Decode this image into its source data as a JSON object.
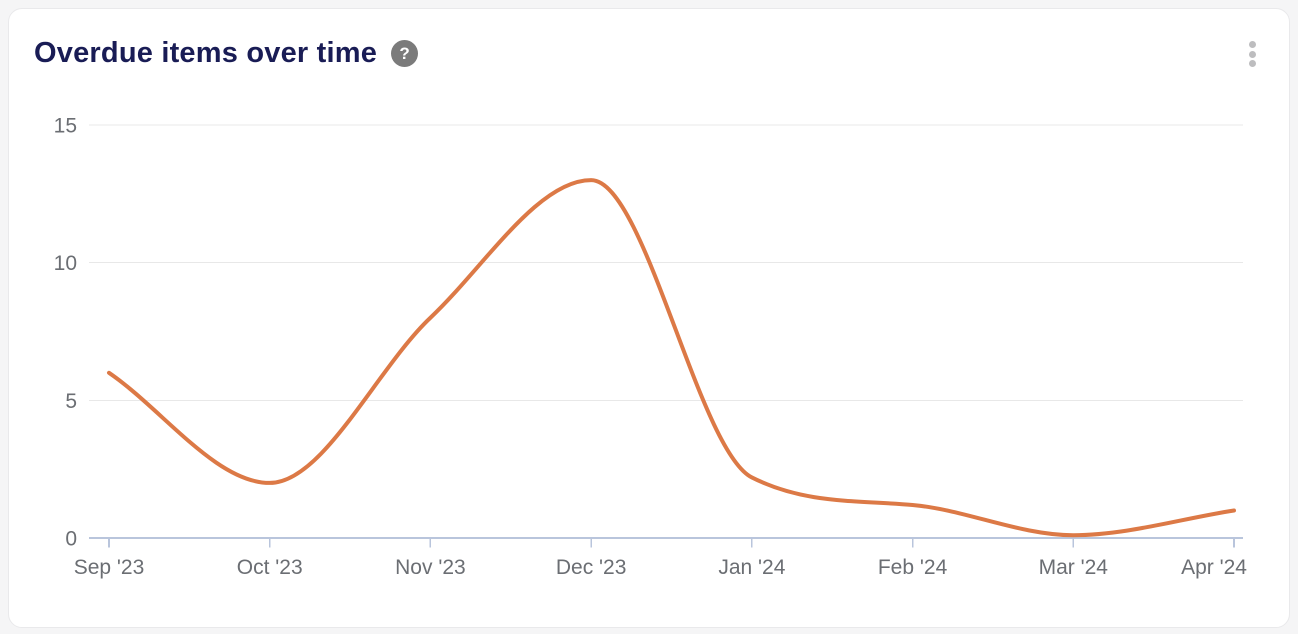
{
  "header": {
    "title": "Overdue items over time",
    "help_glyph": "?"
  },
  "colors": {
    "page_bg": "#f5f5f6",
    "card_bg": "#ffffff",
    "card_border": "#e9e9eb",
    "title_text": "#191c55",
    "line": "#dc7946",
    "gridline": "#e8e8e8",
    "axis_line": "#b9c5dc",
    "axis_label": "#6b6e73",
    "help_icon_bg": "#7b7b7b",
    "kebab_dot": "#bdbdbf"
  },
  "chart_data": {
    "type": "line",
    "title": "Overdue items over time",
    "x_labels": [
      "Sep '23",
      "Oct '23",
      "Nov '23",
      "Dec '23",
      "Jan '24",
      "Feb '24",
      "Mar '24",
      "Apr '24"
    ],
    "series": [
      {
        "name": "Overdue items",
        "color": "#dc7946",
        "values": [
          6,
          2,
          8,
          13,
          2.2,
          1.2,
          0.1,
          1
        ]
      }
    ],
    "y_ticks": [
      0,
      5,
      10,
      15
    ],
    "ylim": [
      0,
      15
    ],
    "xlabel": "",
    "ylabel": "",
    "grid": "horizontal-only",
    "legend": "none",
    "smooth": true
  }
}
